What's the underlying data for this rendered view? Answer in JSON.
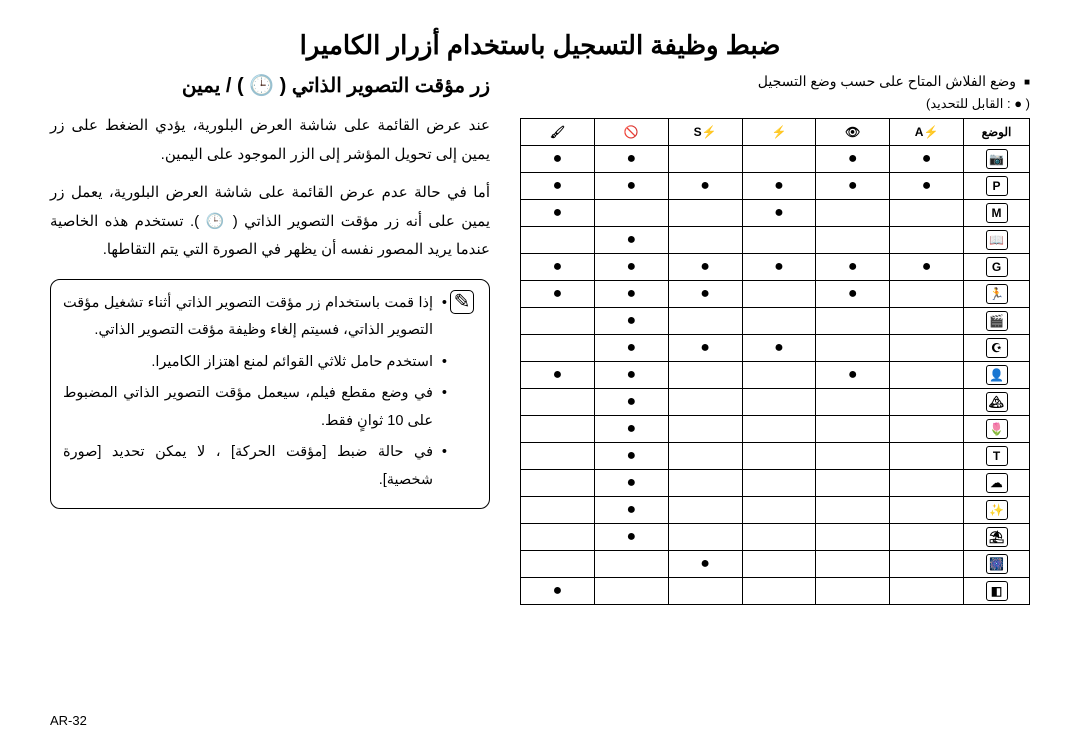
{
  "title": "ضبط وظيفة التسجيل باستخدام أزرار الكاميرا",
  "right": {
    "flash_heading": "وضع الفلاش المتاح على حسب وضع التسجيل",
    "legend": "( ● : القابل للتحديد)",
    "mode_header": "الوضع",
    "head_icons": [
      "⚡A",
      "👁",
      "⚡",
      "⚡S",
      "🚫",
      "🖌"
    ],
    "rows": [
      {
        "mode": "📷",
        "dots": [
          1,
          1,
          0,
          0,
          1,
          1
        ]
      },
      {
        "mode": "P",
        "dots": [
          1,
          1,
          1,
          1,
          1,
          1
        ]
      },
      {
        "mode": "M",
        "dots": [
          0,
          0,
          1,
          0,
          0,
          1
        ]
      },
      {
        "mode": "📖",
        "dots": [
          0,
          0,
          0,
          0,
          1,
          0
        ]
      },
      {
        "mode": "G",
        "dots": [
          1,
          1,
          1,
          1,
          1,
          1
        ]
      },
      {
        "mode": "🏃",
        "dots": [
          0,
          1,
          0,
          1,
          1,
          1
        ]
      },
      {
        "mode": "🎬",
        "dots": [
          0,
          0,
          0,
          0,
          1,
          0
        ]
      },
      {
        "mode": "☪",
        "dots": [
          0,
          0,
          1,
          1,
          1,
          0
        ]
      },
      {
        "mode": "👤",
        "dots": [
          0,
          1,
          0,
          0,
          1,
          1
        ]
      },
      {
        "mode": "🏔",
        "dots": [
          0,
          0,
          0,
          0,
          1,
          0
        ]
      },
      {
        "mode": "🌷",
        "dots": [
          0,
          0,
          0,
          0,
          1,
          0
        ]
      },
      {
        "mode": "T",
        "dots": [
          0,
          0,
          0,
          0,
          1,
          0
        ]
      },
      {
        "mode": "☁",
        "dots": [
          0,
          0,
          0,
          0,
          1,
          0
        ]
      },
      {
        "mode": "✨",
        "dots": [
          0,
          0,
          0,
          0,
          1,
          0
        ]
      },
      {
        "mode": "⛱",
        "dots": [
          0,
          0,
          0,
          0,
          1,
          0
        ]
      },
      {
        "mode": "🎆",
        "dots": [
          0,
          0,
          0,
          1,
          0,
          0
        ]
      },
      {
        "mode": "◧",
        "dots": [
          0,
          0,
          0,
          0,
          0,
          1
        ]
      }
    ]
  },
  "left": {
    "section_title": "زر مؤقت التصوير الذاتي ( 🕒 ) / يمين",
    "para1": "عند عرض القائمة على شاشة العرض البلورية، يؤدي الضغط على زر يمين إلى تحويل المؤشر إلى الزر الموجود على اليمين.",
    "para2": "أما في حالة عدم عرض القائمة على شاشة العرض البلورية، يعمل زر يمين على أنه زر مؤقت التصوير الذاتي ( 🕒 ). تستخدم هذه الخاصية عندما يريد المصور نفسه أن يظهر في الصورة التي يتم التقاطها.",
    "notes": [
      "إذا قمت باستخدام زر مؤقت التصوير الذاتي أثناء تشغيل مؤقت التصوير الذاتي، فسيتم إلغاء وظيفة مؤقت التصوير الذاتي.",
      "استخدم حامل ثلاثي القوائم لمنع اهتزاز الكاميرا.",
      "في وضع مقطع فيلم، سيعمل مؤقت التصوير الذاتي المضبوط على 10 ثوانٍ فقط.",
      "في حالة ضبط [مؤقت الحركة] ، لا يمكن تحديد [صورة شخصية]."
    ]
  },
  "page_number": "AR-32"
}
